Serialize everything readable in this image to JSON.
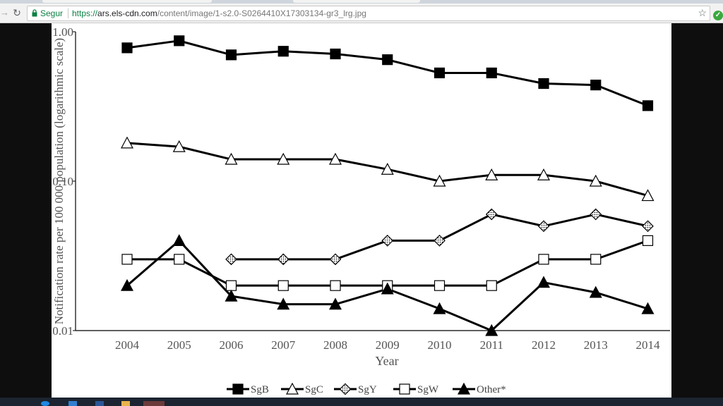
{
  "browser": {
    "secure_label": "Segur",
    "url_scheme": "https://",
    "url_host": "ars.els-cdn.com",
    "url_path": "/content/image/1-s2.0-S0264410X17303134-gr3_lrg.jpg"
  },
  "icons": {
    "back": "back-arrow-icon",
    "reload": "reload-icon",
    "lock": "lock-icon",
    "star": "star-icon",
    "extension": "check-circle-icon"
  },
  "colors": {
    "secure_green": "#0b8043",
    "marker": "#000000"
  },
  "chart_data": {
    "type": "line",
    "xlabel": "Year",
    "ylabel": "Notification rate per 100 000 population (logarithmic scale)",
    "y_scale": "log",
    "ylim": [
      0.01,
      1.0
    ],
    "y_ticks": [
      "0.01",
      "0.10",
      "1.00"
    ],
    "x": [
      "2004",
      "2005",
      "2006",
      "2007",
      "2008",
      "2009",
      "2010",
      "2011",
      "2012",
      "2013",
      "2014"
    ],
    "legend_position": "bottom",
    "series": [
      {
        "name": "SgB",
        "marker": "filled-square",
        "values": [
          0.78,
          0.87,
          0.7,
          0.74,
          0.71,
          0.65,
          0.53,
          0.53,
          0.45,
          0.44,
          0.32
        ]
      },
      {
        "name": "SgC",
        "marker": "open-triangle",
        "values": [
          0.18,
          0.17,
          0.14,
          0.14,
          0.14,
          0.12,
          0.1,
          0.11,
          0.11,
          0.1,
          0.08
        ]
      },
      {
        "name": "SgY",
        "marker": "dotted-diamond",
        "values": [
          null,
          null,
          0.03,
          0.03,
          0.03,
          0.04,
          0.04,
          0.06,
          0.05,
          0.06,
          0.05
        ]
      },
      {
        "name": "SgW",
        "marker": "open-square",
        "values": [
          0.03,
          0.03,
          0.02,
          0.02,
          0.02,
          0.02,
          0.02,
          0.02,
          0.03,
          0.03,
          0.04
        ]
      },
      {
        "name": "Other*",
        "marker": "filled-triangle",
        "values": [
          0.02,
          0.04,
          0.017,
          0.015,
          0.015,
          0.019,
          0.014,
          0.01,
          0.021,
          0.018,
          0.014
        ]
      }
    ]
  }
}
